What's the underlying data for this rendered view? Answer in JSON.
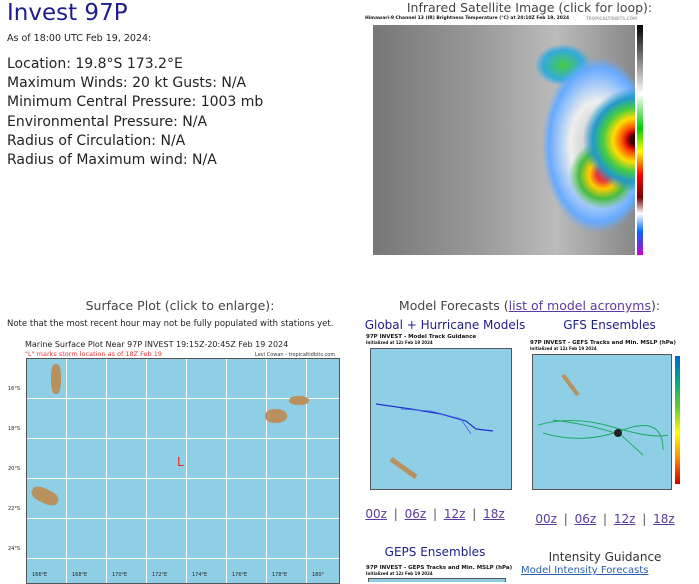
{
  "storm": {
    "title": "Invest 97P",
    "as_of": "As of 18:00 UTC Feb 19, 2024:",
    "location": "Location: 19.8°S 173.2°E",
    "winds": "Maximum Winds: 20 kt  Gusts: N/A",
    "pressure": "Minimum Central Pressure: 1003 mb",
    "env_pressure": "Environmental Pressure: N/A",
    "radius_circ": "Radius of Circulation: N/A",
    "radius_max_wind": "Radius of Maximum wind: N/A"
  },
  "satellite": {
    "heading": "Infrared Satellite Image (click for loop):",
    "caption": "Himawari-9 Channel 13 (IR) Brightness Temperature (°C) at 20:10Z Feb 19, 2024",
    "credit": "TROPICALTIDBITS.COM"
  },
  "surface": {
    "heading": "Surface Plot (click to enlarge):",
    "note": "Note that the most recent hour may not be fully populated with stations yet.",
    "plot_title": "Marine Surface Plot Near 97P INVEST 19:15Z-20:45Z Feb 19 2024",
    "plot_subtitle": "\"L\" marks storm location as of 18Z Feb 19",
    "credit": "Levi Cowan - tropicaltidbits.com",
    "storm_marker": "L",
    "lat_labels": [
      "16°S",
      "18°S",
      "20°S",
      "22°S",
      "24°S"
    ],
    "lon_labels": [
      "166°E",
      "168°E",
      "170°E",
      "172°E",
      "174°E",
      "176°E",
      "178°E",
      "180°"
    ]
  },
  "models": {
    "heading_prefix": "Model Forecasts (",
    "heading_link": "list of model acronyms",
    "heading_suffix": "):",
    "global": {
      "heading": "Global + Hurricane Models",
      "caption": "97P INVEST - Model Track Guidance",
      "init": "Initialized at 12z Feb 19 2024"
    },
    "gfs": {
      "heading": "GFS Ensembles",
      "caption": "97P INVEST - GEFS Tracks and Min. MSLP (hPa)",
      "init": "Initialized at 12z Feb 19 2024"
    },
    "geps": {
      "heading": "GEPS Ensembles",
      "caption": "97P INVEST - GEPS Tracks and Min. MSLP (hPa)",
      "init": "Initialized at 12z Feb 19 2024"
    },
    "intensity": {
      "heading": "Intensity Guidance",
      "link": "Model Intensity Forecasts"
    },
    "runs": [
      "00z",
      "06z",
      "12z",
      "18z"
    ],
    "separator": "|"
  }
}
